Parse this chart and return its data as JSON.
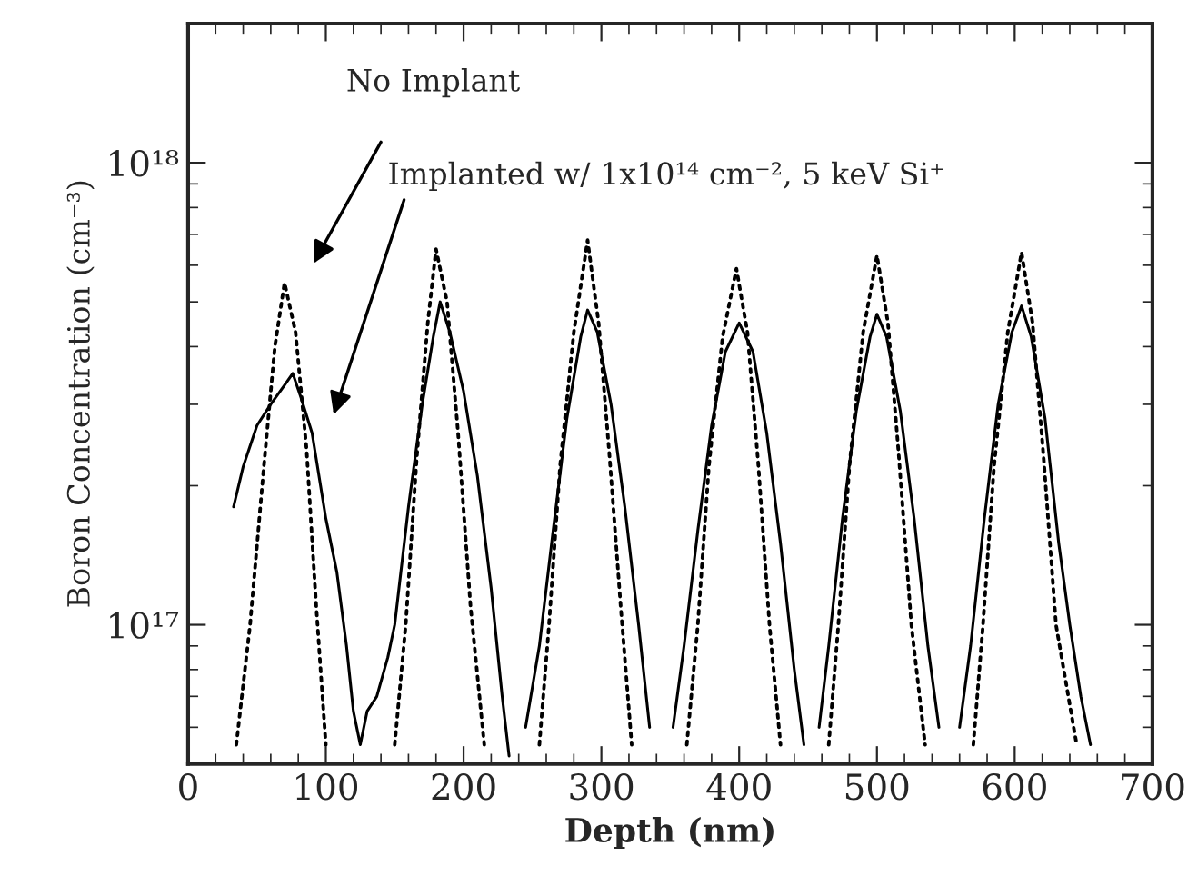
{
  "chart_data": {
    "type": "line",
    "xlabel": "Depth (nm)",
    "ylabel": "Boron Concentration (cm⁻³)",
    "log": "y",
    "grid": false,
    "legend": false,
    "marker": "none",
    "xlim": [
      0,
      700
    ],
    "xticks": [
      0,
      100,
      200,
      300,
      400,
      500,
      600,
      700
    ],
    "ylim": [
      5e+16,
      2e+18
    ],
    "yticks": [
      {
        "value": 1e+17,
        "label": "10¹⁷"
      },
      {
        "value": 1e+18,
        "label": "10¹⁸"
      }
    ],
    "annotations": [
      "No Implant",
      "Implanted w/ 1x10¹⁴ cm⁻², 5 keV Si⁺"
    ],
    "series": [
      {
        "color": "#000000",
        "line_style": "dotted",
        "x": [
          35,
          45,
          55,
          63,
          70,
          78,
          86,
          93,
          100,
          125,
          150,
          158,
          166,
          174,
          180,
          188,
          196,
          205,
          215,
          235,
          255,
          262,
          270,
          280,
          290,
          298,
          306,
          314,
          322,
          342,
          362,
          370,
          378,
          388,
          398,
          406,
          414,
          422,
          430,
          448,
          465,
          472,
          480,
          490,
          500,
          508,
          516,
          525,
          535,
          552,
          570,
          577,
          585,
          595,
          605,
          613,
          621,
          630,
          645
        ],
        "values": [
          5.5e+16,
          1e+17,
          2.2e+17,
          4e+17,
          5.5e+17,
          4.3e+17,
          2.4e+17,
          1.1e+17,
          5.5e+16,
          null,
          5.5e+16,
          1e+17,
          2.3e+17,
          4.5e+17,
          6.5e+17,
          5e+17,
          2.6e+17,
          1.1e+17,
          5.5e+16,
          null,
          5.5e+16,
          1e+17,
          2.2e+17,
          4.3e+17,
          6.8e+17,
          4.5e+17,
          2.3e+17,
          1.1e+17,
          5.5e+16,
          null,
          5.5e+16,
          1e+17,
          2.2e+17,
          4.2e+17,
          5.9e+17,
          4.3e+17,
          2.2e+17,
          1e+17,
          5.5e+16,
          null,
          5.5e+16,
          1e+17,
          2.2e+17,
          4.3e+17,
          6.3e+17,
          4.5e+17,
          2.3e+17,
          1e+17,
          5.5e+16,
          null,
          5.5e+16,
          1e+17,
          2.2e+17,
          4.3e+17,
          6.4e+17,
          4.5e+17,
          2.3e+17,
          1e+17,
          5.5e+16
        ]
      },
      {
        "color": "#000000",
        "line_style": "solid",
        "x": [
          33,
          40,
          50,
          60,
          70,
          76,
          82,
          90,
          100,
          108,
          115,
          120,
          125,
          130,
          137,
          145,
          150,
          160,
          170,
          178,
          183,
          190,
          200,
          210,
          220,
          228,
          233,
          239,
          245,
          255,
          265,
          275,
          285,
          290,
          297,
          307,
          317,
          327,
          335,
          343,
          352,
          360,
          370,
          380,
          390,
          400,
          410,
          420,
          430,
          440,
          447,
          452,
          458,
          465,
          475,
          485,
          495,
          500,
          507,
          517,
          527,
          537,
          545,
          552,
          560,
          568,
          578,
          588,
          598,
          605,
          612,
          622,
          632,
          640,
          648,
          655
        ],
        "values": [
          1.8e+17,
          2.2e+17,
          2.7e+17,
          3e+17,
          3.3e+17,
          3.5e+17,
          3.1e+17,
          2.6e+17,
          1.7e+17,
          1.3e+17,
          9e+16,
          6.5e+16,
          5.5e+16,
          6.5e+16,
          7e+16,
          8.5e+16,
          1e+17,
          1.8e+17,
          3e+17,
          4.2e+17,
          5e+17,
          4.3e+17,
          3.2e+17,
          2.1e+17,
          1.2e+17,
          7e+16,
          5.2e+16,
          null,
          6e+16,
          9e+16,
          1.6e+17,
          2.8e+17,
          4.2e+17,
          4.8e+17,
          4.3e+17,
          3e+17,
          1.8e+17,
          1e+17,
          6e+16,
          null,
          6e+16,
          9e+16,
          1.6e+17,
          2.7e+17,
          3.9e+17,
          4.5e+17,
          3.9e+17,
          2.6e+17,
          1.5e+17,
          8e+16,
          5.5e+16,
          null,
          6e+16,
          9e+16,
          1.7e+17,
          2.9e+17,
          4.2e+17,
          4.7e+17,
          4.2e+17,
          2.9e+17,
          1.7e+17,
          9e+16,
          6e+16,
          null,
          6e+16,
          9e+16,
          1.7e+17,
          3e+17,
          4.3e+17,
          4.9e+17,
          4.2e+17,
          2.8e+17,
          1.5e+17,
          1e+17,
          7e+16,
          5.5e+16
        ]
      }
    ]
  }
}
